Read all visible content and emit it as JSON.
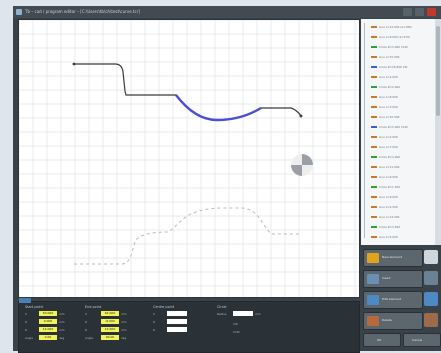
{
  "window": {
    "title": "Tb – cad / program editor – [C:\\Users\\tb\\ch\\test\\curve.tcr]",
    "buttons": [
      "minimize",
      "maximize",
      "close"
    ]
  },
  "tree": {
    "rows": [
      {
        "label": "Line L=12.000 (a=180)",
        "color": "#c77b2a"
      },
      {
        "label": "Line L=6.000 (a=270)",
        "color": "#c77b2a"
      },
      {
        "label": "Circle R=3.000 CCW",
        "color": "#2f9e44"
      },
      {
        "label": "Line L=15.000",
        "color": "#c77b2a"
      },
      {
        "label": "Circle R=18.500 CW",
        "color": "#3b5bd9"
      },
      {
        "label": "Line L=4.000",
        "color": "#c77b2a"
      },
      {
        "label": "Circle R=2.000",
        "color": "#2f9e44"
      },
      {
        "label": "Line L=8.000",
        "color": "#c77b2a"
      },
      {
        "label": "Line L=3.000",
        "color": "#c77b2a"
      },
      {
        "label": "Line L=10.500",
        "color": "#c77b2a"
      },
      {
        "label": "Circle R=5.000 CCW",
        "color": "#3b5bd9"
      },
      {
        "label": "Line L=2.000",
        "color": "#c77b2a"
      },
      {
        "label": "Line L=7.000",
        "color": "#c77b2a"
      },
      {
        "label": "Circle R=4.000",
        "color": "#2f9e44"
      },
      {
        "label": "Line L=11.000",
        "color": "#c77b2a"
      },
      {
        "label": "Line L=6.500",
        "color": "#c77b2a"
      },
      {
        "label": "Circle R=1.500",
        "color": "#2f9e44"
      },
      {
        "label": "Line L=9.000",
        "color": "#c77b2a"
      },
      {
        "label": "Line L=2.500",
        "color": "#c77b2a"
      },
      {
        "label": "Line L=14.000",
        "color": "#c77b2a"
      },
      {
        "label": "Circle R=3.500",
        "color": "#2f9e44"
      },
      {
        "label": "Line L=5.000",
        "color": "#c77b2a"
      }
    ]
  },
  "right_buttons": [
    {
      "label": "New element",
      "icon_color": "#e0a31b"
    },
    {
      "label": "Insert",
      "icon_color": "#6a8fb3"
    },
    {
      "label": "Edit element",
      "icon_color": "#4f89c4"
    },
    {
      "label": "Delete",
      "icon_color": "#b56a3a"
    }
  ],
  "footer_buttons": [
    "OK",
    "Cancel"
  ],
  "bottom_panel": {
    "groups": [
      {
        "title": "Start point",
        "rows": [
          {
            "label": "X",
            "value": "50.000",
            "unit": "mm"
          },
          {
            "label": "Z",
            "value": "0.000",
            "unit": "mm"
          },
          {
            "label": "D",
            "value": "12.000",
            "unit": "mm"
          },
          {
            "label": "Angle",
            "value": "0.00",
            "unit": "deg"
          }
        ]
      },
      {
        "title": "End point",
        "rows": [
          {
            "label": "X",
            "value": "62.000",
            "unit": "mm"
          },
          {
            "label": "Z",
            "value": "-6.000",
            "unit": "mm"
          },
          {
            "label": "D",
            "value": "12.000",
            "unit": "mm"
          },
          {
            "label": "Angle",
            "value": "90.00",
            "unit": "deg"
          }
        ]
      },
      {
        "title": "Centre point",
        "rows": [
          {
            "label": "X",
            "value": "",
            "unit": ""
          },
          {
            "label": "Z",
            "value": "",
            "unit": ""
          },
          {
            "label": "R",
            "value": "",
            "unit": ""
          }
        ]
      },
      {
        "title": "Circle",
        "rows": [
          {
            "label": "Radius",
            "value": "",
            "unit": "mm"
          },
          {
            "label": "CW",
            "value": "",
            "unit": ""
          },
          {
            "label": "CCW",
            "value": "",
            "unit": ""
          }
        ]
      }
    ]
  },
  "canvas": {
    "grid_color": "#d3d7db",
    "contour_color": "#3a3a3a",
    "highlight_color": "#4a4fd6",
    "offset_color": "#b8bcc0"
  }
}
